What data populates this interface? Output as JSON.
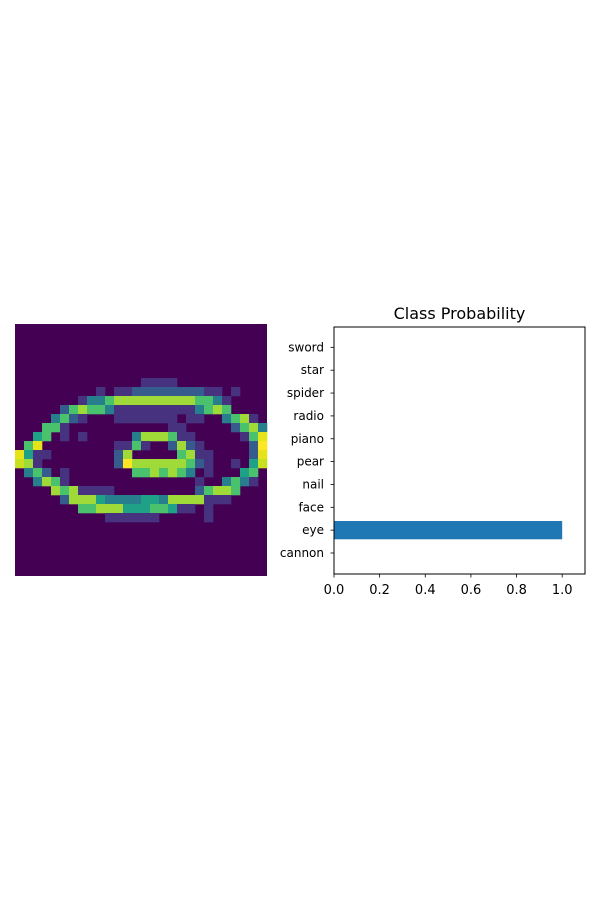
{
  "figure": {
    "panels": [
      {
        "panel": "image",
        "cmap": "viridis",
        "axis_visible": false
      },
      {
        "panel": "bar"
      }
    ]
  },
  "chart_data": [
    {
      "type": "heatmap",
      "cmap": "viridis",
      "axes": "off",
      "rows": 28,
      "cols": 28,
      "grid": [
        "............................",
        "............................",
        "............................",
        "............................",
        "............................",
        "............................",
        "..............1111..........",
        ".........1.112222222211.1...",
        ".......13356666666665531....",
        ".....2565531111111113565....",
        "....3521...1111111.11..3561.",
        "...551...........11.....2563",
        "..45.1.1.....3666511.....158",
        ".58........1151..2621.....29",
        "8411.......26.....5611....28",
        "761........29666666521..1.47",
        ".352.1.......5565653.1...45.",
        "..3651..............1..3531.",
        "....6561111.........25665...",
        ".....2666433334436666111....",
        ".......5566644455411.1......",
        "..........111111.....1......",
        "............................",
        "............................",
        "............................",
        "............................",
        "............................",
        "............................"
      ]
    },
    {
      "type": "bar",
      "orientation": "horizontal",
      "title": "Class Probability",
      "categories": [
        "cannon",
        "eye",
        "face",
        "nail",
        "pear",
        "piano",
        "radio",
        "spider",
        "star",
        "sword"
      ],
      "values": [
        0.0,
        1.0,
        0.0,
        0.0,
        0.0,
        0.0,
        0.0,
        0.0,
        0.0,
        0.0
      ],
      "xlim": [
        0,
        1.1
      ],
      "xticks": [
        "0.0",
        "0.2",
        "0.4",
        "0.6",
        "0.8",
        "1.0"
      ],
      "bar_color": "#1f77b4",
      "grid": false,
      "legend": "none"
    }
  ]
}
